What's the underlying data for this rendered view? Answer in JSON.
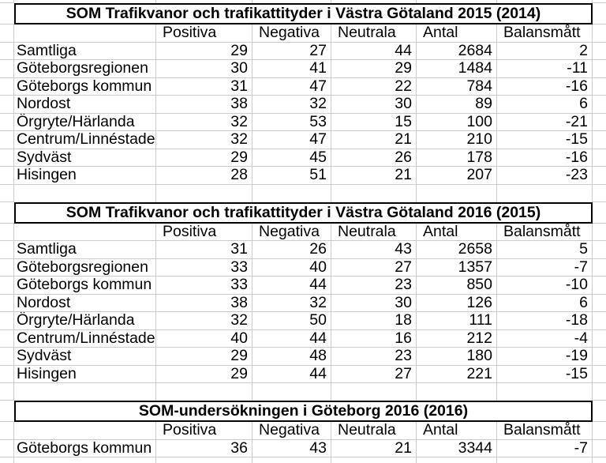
{
  "sheet": {
    "colors": {
      "background": "#ffffff",
      "gridline": "#cbcbcb",
      "title_border": "#000000",
      "text": "#000000"
    },
    "columns": [
      "Positiva",
      "Negativa",
      "Neutrala",
      "Antal",
      "Balansmått"
    ],
    "tables": [
      {
        "title": "SOM Trafikvanor och trafikattityder i Västra Götaland 2015 (2014)",
        "rows": [
          {
            "label": "Samtliga",
            "values": [
              29,
              27,
              44,
              2684,
              2
            ]
          },
          {
            "label": "Göteborgsregionen",
            "values": [
              30,
              41,
              29,
              1484,
              -11
            ]
          },
          {
            "label": "Göteborgs kommun",
            "values": [
              31,
              47,
              22,
              784,
              -16
            ]
          },
          {
            "label": "Nordost",
            "values": [
              38,
              32,
              30,
              89,
              6
            ]
          },
          {
            "label": "Örgryte/Härlanda",
            "values": [
              32,
              53,
              15,
              100,
              -21
            ]
          },
          {
            "label": "Centrum/Linnéstaden",
            "values": [
              32,
              47,
              21,
              210,
              -15
            ]
          },
          {
            "label": "Sydväst",
            "values": [
              29,
              45,
              26,
              178,
              -16
            ]
          },
          {
            "label": "Hisingen",
            "values": [
              28,
              51,
              21,
              207,
              -23
            ]
          }
        ]
      },
      {
        "title": "SOM Trafikvanor och trafikattityder i Västra Götaland 2016 (2015)",
        "rows": [
          {
            "label": "Samtliga",
            "values": [
              31,
              26,
              43,
              2658,
              5
            ]
          },
          {
            "label": "Göteborgsregionen",
            "values": [
              33,
              40,
              27,
              1357,
              -7
            ]
          },
          {
            "label": "Göteborgs kommun",
            "values": [
              33,
              44,
              23,
              850,
              -10
            ]
          },
          {
            "label": "Nordost",
            "values": [
              38,
              32,
              30,
              126,
              6
            ]
          },
          {
            "label": "Örgryte/Härlanda",
            "values": [
              32,
              50,
              18,
              111,
              -18
            ]
          },
          {
            "label": "Centrum/Linnéstaden",
            "values": [
              40,
              44,
              16,
              212,
              -4
            ]
          },
          {
            "label": "Sydväst",
            "values": [
              29,
              48,
              23,
              180,
              -19
            ]
          },
          {
            "label": "Hisingen",
            "values": [
              29,
              44,
              27,
              221,
              -15
            ]
          }
        ]
      },
      {
        "title": "SOM-undersökningen i Göteborg 2016 (2016)",
        "rows": [
          {
            "label": "Göteborgs kommun",
            "values": [
              36,
              43,
              21,
              3344,
              -7
            ]
          }
        ]
      }
    ]
  }
}
